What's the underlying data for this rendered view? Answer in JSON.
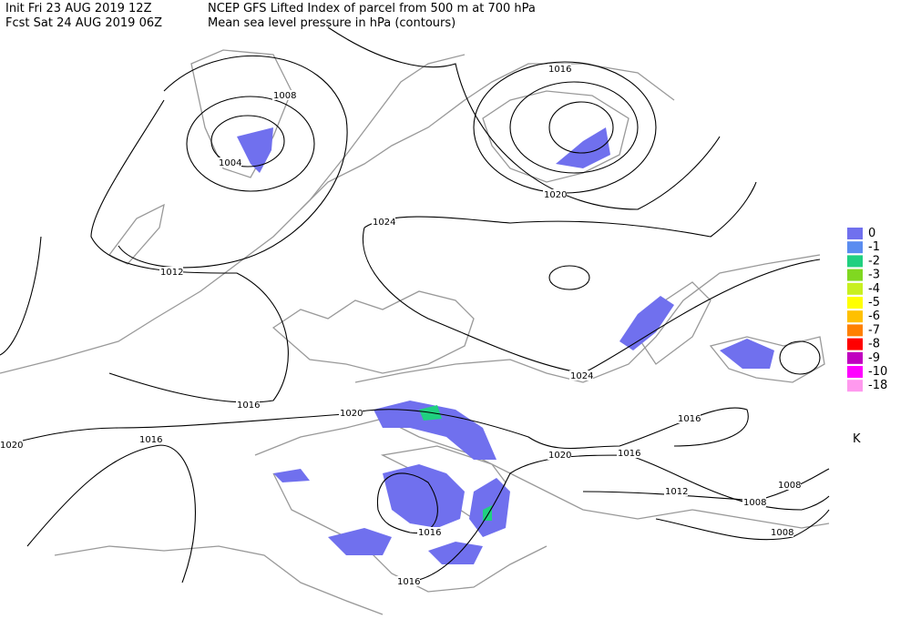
{
  "header": {
    "init": "Init  Fri 23 AUG 2019 12Z",
    "fcst": "Fcst Sat 24 AUG 2019 06Z",
    "title": "NCEP GFS Lifted Index of parcel from 500 m at 700 hPa",
    "subtitle": "Mean sea level pressure in hPa (contours)"
  },
  "legend": {
    "items": [
      {
        "label": "0",
        "color": "#7070ee"
      },
      {
        "label": "-1",
        "color": "#5a8cf0"
      },
      {
        "label": "-2",
        "color": "#20d080"
      },
      {
        "label": "-3",
        "color": "#80d820"
      },
      {
        "label": "-4",
        "color": "#c8f020"
      },
      {
        "label": "-5",
        "color": "#ffff00"
      },
      {
        "label": "-6",
        "color": "#ffc000"
      },
      {
        "label": "-7",
        "color": "#ff8000"
      },
      {
        "label": "-8",
        "color": "#ff0000"
      },
      {
        "label": "-9",
        "color": "#c000c0"
      },
      {
        "label": "-10",
        "color": "#ff00ff"
      },
      {
        "label": "-18",
        "color": "#ff99ee"
      }
    ],
    "unit": "K"
  },
  "contour_labels": [
    "1008",
    "1004",
    "1016",
    "1020",
    "1024",
    "1012",
    "1016",
    "1020",
    "1024",
    "1016",
    "1020",
    "1016",
    "1020",
    "1016",
    "1012",
    "1008",
    "1008",
    "1008",
    "1016",
    "1016"
  ]
}
